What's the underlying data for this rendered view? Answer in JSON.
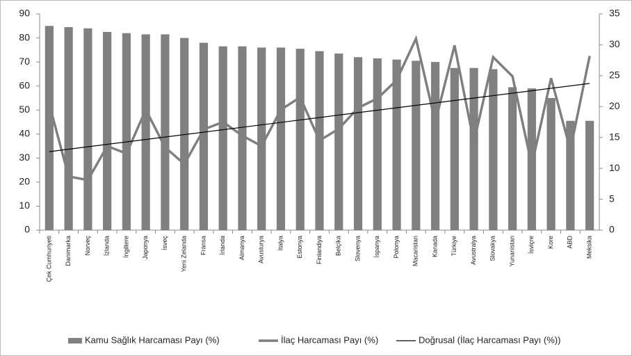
{
  "chart_data": {
    "type": "bar-line",
    "categories": [
      "Çek Cumhuriyeti",
      "Danimarka",
      "Norveç",
      "İzlanda",
      "İngiltere",
      "Japonya",
      "İsveç",
      "Yeni Zelanda",
      "Fransa",
      "İrlanda",
      "Almanya",
      "Avusturya",
      "İtalya",
      "Estonya",
      "Finlandiya",
      "Belçika",
      "Slovenya",
      "İspanya",
      "Polonya",
      "Macaristan",
      "Kanada",
      "Türkiye",
      "Avustralya",
      "Slovakya",
      "Yunanistan",
      "İsviçre",
      "Kore",
      "ABD",
      "Meksika"
    ],
    "series": [
      {
        "name": "Kamu Sağlık Harcaması Payı (%)",
        "type": "bar",
        "color": "#808080",
        "values": [
          85,
          84.5,
          84,
          82.5,
          82,
          81.5,
          81.5,
          80,
          78,
          76.5,
          76.5,
          76,
          76,
          75.5,
          74.5,
          73.5,
          72,
          71.5,
          71,
          70.5,
          70,
          67.5,
          67.5,
          67,
          59.5,
          59,
          55,
          45.5,
          45.5
        ]
      },
      {
        "name": "İlaç Harcaması Payı (%)",
        "type": "line",
        "axis": "y2",
        "color": "#7f7f7f",
        "values": [
          20.4,
          8.7,
          8.1,
          13.6,
          12.4,
          19.5,
          13.4,
          10.7,
          16.3,
          17.5,
          15.3,
          13.6,
          19.5,
          21.5,
          14.5,
          16.4,
          19.8,
          21.3,
          24.3,
          31,
          17.5,
          29.9,
          14.2,
          28,
          24.9,
          10.5,
          24.6,
          13,
          28.2
        ]
      },
      {
        "name": "Doğrusal (İlaç Harcaması Payı (%))",
        "type": "trendline",
        "axis": "y2",
        "color": "#000000",
        "trendline": "linear",
        "source": 1
      }
    ],
    "ylim": [
      0,
      90
    ],
    "yticks": [
      0,
      10,
      20,
      30,
      40,
      50,
      60,
      70,
      80,
      90
    ],
    "y2lim": [
      0,
      35
    ],
    "y2ticks": [
      0,
      5,
      10,
      15,
      20,
      25,
      30,
      35
    ],
    "grid": false,
    "legend": "bottom"
  }
}
